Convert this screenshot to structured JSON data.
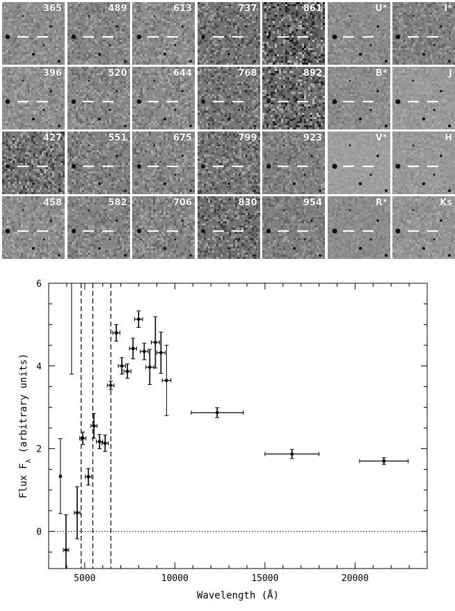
{
  "stamps": {
    "rows": [
      [
        "365",
        "489",
        "613",
        "737",
        "861",
        "U*",
        "I*"
      ],
      [
        "396",
        "520",
        "644",
        "768",
        "892",
        "B*",
        "J"
      ],
      [
        "427",
        "551",
        "675",
        "799",
        "923",
        "V*",
        "H"
      ],
      [
        "458",
        "582",
        "706",
        "830",
        "954",
        "R*",
        "Ks"
      ]
    ],
    "tones": [
      [
        0.55,
        0.52,
        0.54,
        0.45,
        0.4,
        0.55,
        0.5
      ],
      [
        0.56,
        0.53,
        0.54,
        0.46,
        0.42,
        0.55,
        0.6
      ],
      [
        0.45,
        0.5,
        0.52,
        0.46,
        0.5,
        0.62,
        0.6
      ],
      [
        0.55,
        0.52,
        0.52,
        0.44,
        0.5,
        0.55,
        0.58
      ]
    ],
    "noise": [
      [
        0.25,
        0.3,
        0.3,
        0.45,
        0.75,
        0.2,
        0.3
      ],
      [
        0.25,
        0.3,
        0.3,
        0.45,
        0.7,
        0.2,
        0.15
      ],
      [
        0.55,
        0.35,
        0.35,
        0.45,
        0.3,
        0.1,
        0.15
      ],
      [
        0.3,
        0.3,
        0.35,
        0.5,
        0.3,
        0.15,
        0.2
      ]
    ]
  },
  "chart_data": {
    "type": "scatter",
    "title": "",
    "xlabel": "Wavelength (Å)",
    "ylabel": "Flux F_λ (arbitrary units)",
    "xlim": [
      3000,
      24000
    ],
    "ylim": [
      -0.9,
      6
    ],
    "xticks": [
      5000,
      10000,
      15000,
      20000
    ],
    "yticks": [
      0,
      2,
      4,
      6
    ],
    "xtick_labels": [
      "5000",
      "10000",
      "15000",
      "20000"
    ],
    "ytick_labels": [
      "0",
      "2",
      "4",
      "6"
    ],
    "zero_line": true,
    "vertical_lines": [
      4800,
      5450,
      6450
    ],
    "series": [
      {
        "points": [
          {
            "x": 3650,
            "y": 1.33,
            "ylo": 0.43,
            "yhi": 2.24,
            "xerr": 0
          },
          {
            "x": 3960,
            "y": -0.45,
            "ylo": -0.9,
            "yhi": 0.4,
            "xerr": 150
          },
          {
            "x": 4270,
            "y": 6.0,
            "ylo": 3.8,
            "yhi": 6.0,
            "xerr": 0
          },
          {
            "x": 4580,
            "y": 0.45,
            "ylo": -0.18,
            "yhi": 1.08,
            "xerr": 160
          },
          {
            "x": 4890,
            "y": 2.25,
            "ylo": 2.1,
            "yhi": 2.4,
            "xerr": 170
          },
          {
            "x": 5200,
            "y": 1.32,
            "ylo": 1.12,
            "yhi": 1.52,
            "xerr": 170
          },
          {
            "x": 5510,
            "y": 2.55,
            "ylo": 2.25,
            "yhi": 2.85,
            "xerr": 170
          },
          {
            "x": 5820,
            "y": 2.17,
            "ylo": 2.0,
            "yhi": 2.34,
            "xerr": 180
          },
          {
            "x": 6130,
            "y": 2.13,
            "ylo": 1.93,
            "yhi": 2.33,
            "xerr": 180
          },
          {
            "x": 6440,
            "y": 3.53,
            "ylo": 3.43,
            "yhi": 3.63,
            "xerr": 190
          },
          {
            "x": 6750,
            "y": 4.8,
            "ylo": 4.6,
            "yhi": 5.0,
            "xerr": 200
          },
          {
            "x": 7060,
            "y": 4.0,
            "ylo": 3.8,
            "yhi": 4.2,
            "xerr": 200
          },
          {
            "x": 7370,
            "y": 3.87,
            "ylo": 3.7,
            "yhi": 4.05,
            "xerr": 200
          },
          {
            "x": 7680,
            "y": 4.42,
            "ylo": 4.17,
            "yhi": 4.67,
            "xerr": 200
          },
          {
            "x": 7990,
            "y": 5.13,
            "ylo": 4.93,
            "yhi": 5.33,
            "xerr": 220
          },
          {
            "x": 8300,
            "y": 4.35,
            "ylo": 4.15,
            "yhi": 4.55,
            "xerr": 220
          },
          {
            "x": 8610,
            "y": 3.97,
            "ylo": 3.55,
            "yhi": 4.4,
            "xerr": 220
          },
          {
            "x": 8920,
            "y": 4.57,
            "ylo": 3.95,
            "yhi": 5.19,
            "xerr": 230
          },
          {
            "x": 9230,
            "y": 4.32,
            "ylo": 3.82,
            "yhi": 4.82,
            "xerr": 230
          },
          {
            "x": 9540,
            "y": 3.65,
            "ylo": 2.8,
            "yhi": 4.5,
            "xerr": 240
          },
          {
            "x": 12350,
            "y": 2.87,
            "ylo": 2.75,
            "yhi": 2.99,
            "xerr": 1450
          },
          {
            "x": 16500,
            "y": 1.87,
            "ylo": 1.76,
            "yhi": 1.98,
            "xerr": 1500
          },
          {
            "x": 21600,
            "y": 1.7,
            "ylo": 1.62,
            "yhi": 1.78,
            "xerr": 1350
          }
        ]
      }
    ]
  }
}
